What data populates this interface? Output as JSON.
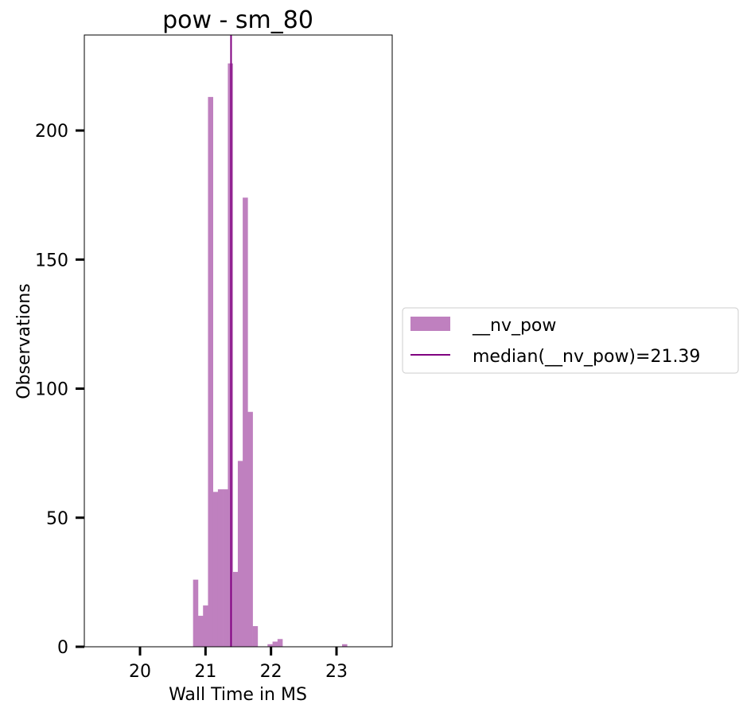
{
  "chart_data": {
    "type": "bar",
    "title": "pow - sm_80",
    "xlabel": "Wall Time in MS",
    "ylabel": "Observations",
    "xlim": [
      19.15,
      23.85
    ],
    "ylim": [
      0,
      237
    ],
    "xticks": [
      20,
      21,
      22,
      23
    ],
    "yticks": [
      0,
      50,
      100,
      150,
      200
    ],
    "grid": false,
    "legend_position": "outside-right",
    "bar_color": "#bf80bf",
    "median_color": "#800080",
    "bin_width": 0.0758,
    "bins": [
      {
        "x": 20.81,
        "count": 26
      },
      {
        "x": 20.886,
        "count": 12
      },
      {
        "x": 20.962,
        "count": 16
      },
      {
        "x": 21.038,
        "count": 213
      },
      {
        "x": 21.114,
        "count": 60
      },
      {
        "x": 21.189,
        "count": 61
      },
      {
        "x": 21.265,
        "count": 61
      },
      {
        "x": 21.341,
        "count": 226
      },
      {
        "x": 21.417,
        "count": 29
      },
      {
        "x": 21.493,
        "count": 72
      },
      {
        "x": 21.568,
        "count": 174
      },
      {
        "x": 21.644,
        "count": 91
      },
      {
        "x": 21.72,
        "count": 8
      },
      {
        "x": 21.947,
        "count": 1
      },
      {
        "x": 22.023,
        "count": 2
      },
      {
        "x": 22.099,
        "count": 3
      },
      {
        "x": 23.085,
        "count": 1
      }
    ],
    "median": 21.39,
    "series": [
      {
        "name": "__nv_pow",
        "kind": "histogram"
      },
      {
        "name": "median(__nv_pow)=21.39",
        "kind": "vline"
      }
    ]
  }
}
